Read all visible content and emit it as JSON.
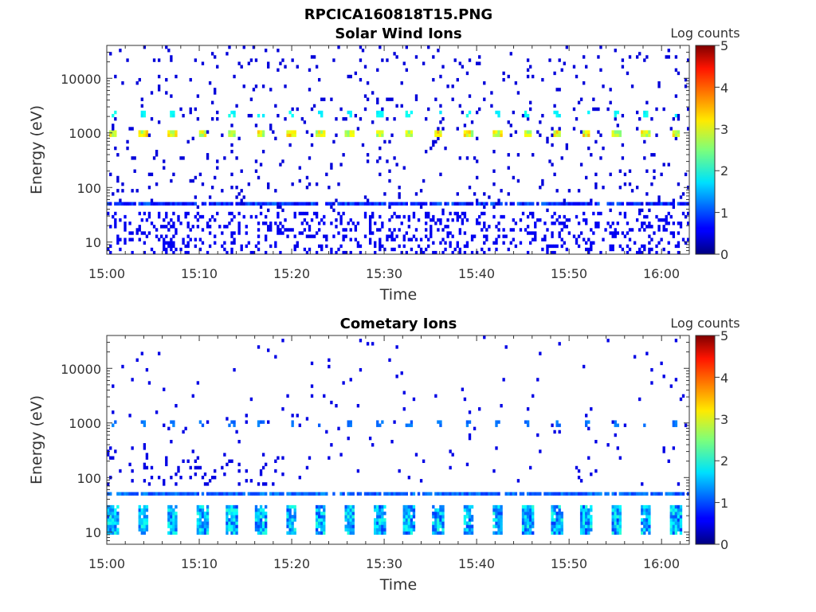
{
  "figure_title": "RPCICA160818T15.PNG",
  "chart_data": [
    {
      "type": "heatmap",
      "title": "Solar Wind Ions",
      "xlabel": "Time",
      "ylabel": "Energy (eV)",
      "x_ticks": [
        "15:00",
        "15:10",
        "15:20",
        "15:30",
        "15:40",
        "15:50",
        "16:00"
      ],
      "x_range_minutes": [
        0,
        63
      ],
      "y_ticks": [
        10,
        100,
        1000,
        10000
      ],
      "y_tick_labels": [
        "10",
        "100",
        "1000",
        "10000"
      ],
      "y_range": [
        6,
        40000
      ],
      "y_scale": "log",
      "colorbar": {
        "label": "Log counts",
        "ticks": [
          "0",
          "1",
          "2",
          "3",
          "4",
          "5"
        ],
        "range": [
          0,
          5
        ],
        "colormap": "jet"
      },
      "features": {
        "peak_energy_eV": 1000,
        "peak_log_counts": 3,
        "peak_times_minutes": [
          0.7,
          3.9,
          7.1,
          10.3,
          13.5,
          16.7,
          19.9,
          23.1,
          26.3,
          29.5,
          32.7,
          35.9,
          39.1,
          42.3,
          45.5,
          48.7,
          51.9,
          55.1,
          58.3,
          61.5
        ],
        "low_energy_band_eV": 50,
        "background": "scattered low counts (log counts about 0-1) across all energies"
      }
    },
    {
      "type": "heatmap",
      "title": "Cometary Ions",
      "xlabel": "Time",
      "ylabel": "Energy (eV)",
      "x_ticks": [
        "15:00",
        "15:10",
        "15:20",
        "15:30",
        "15:40",
        "15:50",
        "16:00"
      ],
      "x_range_minutes": [
        0,
        63
      ],
      "y_ticks": [
        10,
        100,
        1000,
        10000
      ],
      "y_tick_labels": [
        "10",
        "100",
        "1000",
        "10000"
      ],
      "y_range": [
        6,
        40000
      ],
      "y_scale": "log",
      "colorbar": {
        "label": "Log counts",
        "ticks": [
          "0",
          "1",
          "2",
          "3",
          "4",
          "5"
        ],
        "range": [
          0,
          5
        ],
        "colormap": "jet"
      },
      "features": {
        "low_energy_block_range_eV": [
          10,
          30
        ],
        "low_energy_block_log_counts": 1.8,
        "block_times_minutes": [
          0.7,
          3.9,
          7.1,
          10.3,
          13.5,
          16.7,
          19.9,
          23.1,
          26.3,
          29.5,
          32.7,
          35.9,
          39.1,
          42.3,
          45.5,
          48.7,
          51.9,
          55.1,
          58.3,
          61.5
        ],
        "band_energy_eV": 50,
        "band_log_counts": 1.2,
        "secondary_peak_energy_eV": 1000,
        "background": "sparse low counts above 100 eV"
      }
    }
  ]
}
